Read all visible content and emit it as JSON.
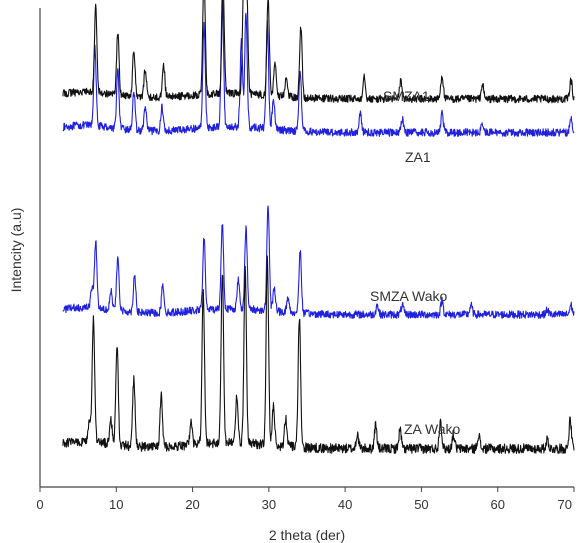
{
  "chart_data": {
    "type": "line",
    "xlabel": "2 theta (der)",
    "ylabel": "Intencity (a.u)",
    "xlim": [
      0,
      70
    ],
    "xticks": [
      0,
      10,
      20,
      30,
      40,
      50,
      60,
      70
    ],
    "yticks_shown": false,
    "grid": false,
    "legend": "none",
    "series": [
      {
        "name": "SMZA1",
        "color": "#2020e0",
        "baseline": 0.74,
        "noise": 0.008,
        "peaks": [
          [
            7.2,
            0.16
          ],
          [
            10.2,
            0.12
          ],
          [
            12.3,
            0.08
          ],
          [
            13.8,
            0.05
          ],
          [
            16.0,
            0.05
          ],
          [
            21.5,
            0.22
          ],
          [
            23.9,
            0.28
          ],
          [
            26.4,
            0.18
          ],
          [
            27.0,
            0.24
          ],
          [
            29.8,
            0.22
          ],
          [
            30.6,
            0.06
          ],
          [
            34.1,
            0.13
          ],
          [
            42.0,
            0.04
          ],
          [
            47.5,
            0.03
          ],
          [
            52.7,
            0.04
          ],
          [
            58.0,
            0.02
          ],
          [
            69.6,
            0.03
          ]
        ]
      },
      {
        "name": "ZA1",
        "color": "#111111",
        "baseline": 0.81,
        "noise": 0.008,
        "peaks": [
          [
            7.3,
            0.18
          ],
          [
            10.2,
            0.13
          ],
          [
            12.3,
            0.1
          ],
          [
            13.8,
            0.06
          ],
          [
            16.2,
            0.07
          ],
          [
            21.5,
            0.25
          ],
          [
            24.0,
            0.22
          ],
          [
            26.7,
            0.23
          ],
          [
            27.1,
            0.21
          ],
          [
            29.9,
            0.2
          ],
          [
            30.8,
            0.07
          ],
          [
            32.3,
            0.04
          ],
          [
            34.2,
            0.15
          ],
          [
            42.5,
            0.05
          ],
          [
            47.3,
            0.04
          ],
          [
            52.7,
            0.05
          ],
          [
            58.0,
            0.03
          ],
          [
            69.6,
            0.04
          ]
        ]
      },
      {
        "name": "SMZA Wako",
        "color": "#2020e0",
        "baseline": 0.36,
        "noise": 0.008,
        "peaks": [
          [
            6.8,
            0.04
          ],
          [
            7.3,
            0.14
          ],
          [
            9.3,
            0.04
          ],
          [
            10.2,
            0.11
          ],
          [
            12.4,
            0.08
          ],
          [
            16.1,
            0.06
          ],
          [
            21.5,
            0.15
          ],
          [
            23.9,
            0.18
          ],
          [
            26.0,
            0.06
          ],
          [
            27.0,
            0.17
          ],
          [
            29.9,
            0.22
          ],
          [
            30.7,
            0.05
          ],
          [
            32.5,
            0.03
          ],
          [
            34.1,
            0.13
          ],
          [
            44.2,
            0.02
          ],
          [
            47.5,
            0.02
          ],
          [
            52.7,
            0.03
          ],
          [
            56.5,
            0.02
          ],
          [
            66.5,
            0.01
          ],
          [
            69.6,
            0.02
          ]
        ]
      },
      {
        "name": "ZA Wako",
        "color": "#111111",
        "baseline": 0.08,
        "noise": 0.01,
        "peaks": [
          [
            6.5,
            0.04
          ],
          [
            7.0,
            0.26
          ],
          [
            9.3,
            0.05
          ],
          [
            10.1,
            0.21
          ],
          [
            12.3,
            0.14
          ],
          [
            15.9,
            0.11
          ],
          [
            19.8,
            0.05
          ],
          [
            21.4,
            0.32
          ],
          [
            23.9,
            0.36
          ],
          [
            25.8,
            0.1
          ],
          [
            26.9,
            0.37
          ],
          [
            29.8,
            0.39
          ],
          [
            30.6,
            0.08
          ],
          [
            32.2,
            0.06
          ],
          [
            34.0,
            0.27
          ],
          [
            41.6,
            0.03
          ],
          [
            44.0,
            0.05
          ],
          [
            47.2,
            0.04
          ],
          [
            52.5,
            0.06
          ],
          [
            54.2,
            0.03
          ],
          [
            57.5,
            0.03
          ],
          [
            66.5,
            0.02
          ],
          [
            69.5,
            0.06
          ]
        ]
      }
    ]
  }
}
